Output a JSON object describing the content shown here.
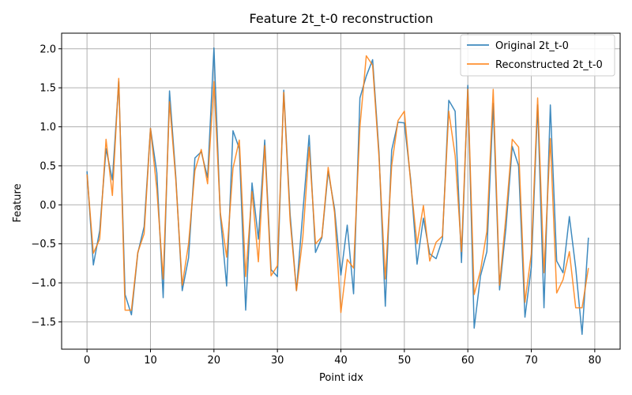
{
  "chart_data": {
    "type": "line",
    "title": "Feature 2t_t-0 reconstruction",
    "xlabel": "Point idx",
    "ylabel": "Feature",
    "xlim": [
      -4,
      84
    ],
    "ylim": [
      -1.85,
      2.2
    ],
    "xticks": [
      0,
      10,
      20,
      30,
      40,
      50,
      60,
      70,
      80
    ],
    "yticks": [
      -1.5,
      -1.0,
      -0.5,
      0.0,
      0.5,
      1.0,
      1.5,
      2.0
    ],
    "xtick_labels": [
      "0",
      "10",
      "20",
      "30",
      "40",
      "50",
      "60",
      "70",
      "80"
    ],
    "ytick_labels": [
      "−1.5",
      "−1.0",
      "−0.5",
      "0.0",
      "0.5",
      "1.0",
      "1.5",
      "2.0"
    ],
    "grid": true,
    "legend_position": "top-right",
    "series": [
      {
        "name": "Original 2t_t-0",
        "color": "#1f77b4",
        "values": [
          0.43,
          -0.77,
          -0.33,
          0.72,
          0.32,
          1.58,
          -1.15,
          -1.41,
          -0.62,
          -0.28,
          0.98,
          0.41,
          -1.19,
          1.46,
          0.35,
          -1.1,
          -0.68,
          0.6,
          0.68,
          0.35,
          2.01,
          -0.13,
          -1.04,
          0.95,
          0.72,
          -1.35,
          0.28,
          -0.44,
          0.83,
          -0.83,
          -0.92,
          1.47,
          -0.12,
          -1.1,
          -0.1,
          0.89,
          -0.61,
          -0.42,
          0.43,
          -0.05,
          -0.9,
          -0.26,
          -1.14,
          1.37,
          1.65,
          1.86,
          0.68,
          -1.3,
          0.7,
          1.06,
          1.05,
          0.32,
          -0.76,
          -0.17,
          -0.63,
          -0.69,
          -0.44,
          1.34,
          1.2,
          -0.74,
          1.53,
          -1.58,
          -0.91,
          -0.6,
          1.3,
          -1.09,
          -0.3,
          0.75,
          0.5,
          -1.44,
          -0.8,
          1.28,
          -1.32,
          1.28,
          -0.72,
          -0.87,
          -0.15,
          -0.81,
          -1.66,
          -0.42
        ]
      },
      {
        "name": "Reconstructed 2t_t-0",
        "color": "#ff7f0e",
        "values": [
          0.39,
          -0.62,
          -0.44,
          0.84,
          0.12,
          1.62,
          -1.35,
          -1.35,
          -0.61,
          -0.37,
          0.98,
          0.2,
          -0.95,
          1.32,
          0.31,
          -1.03,
          -0.5,
          0.44,
          0.71,
          0.27,
          1.58,
          -0.1,
          -0.67,
          0.47,
          0.83,
          -0.92,
          0.17,
          -0.73,
          0.76,
          -0.91,
          -0.78,
          1.44,
          -0.2,
          -1.1,
          -0.42,
          0.74,
          -0.5,
          -0.41,
          0.48,
          -0.1,
          -1.38,
          -0.7,
          -0.81,
          1.0,
          1.91,
          1.79,
          0.62,
          -0.95,
          0.5,
          1.08,
          1.2,
          0.28,
          -0.5,
          -0.01,
          -0.72,
          -0.48,
          -0.4,
          1.2,
          0.63,
          -0.6,
          1.48,
          -1.15,
          -0.84,
          -0.34,
          1.48,
          -1.03,
          -0.15,
          0.84,
          0.74,
          -1.25,
          -0.63,
          1.37,
          -0.87,
          0.85,
          -1.13,
          -0.96,
          -0.6,
          -1.32,
          -1.32,
          -0.81
        ]
      }
    ]
  }
}
